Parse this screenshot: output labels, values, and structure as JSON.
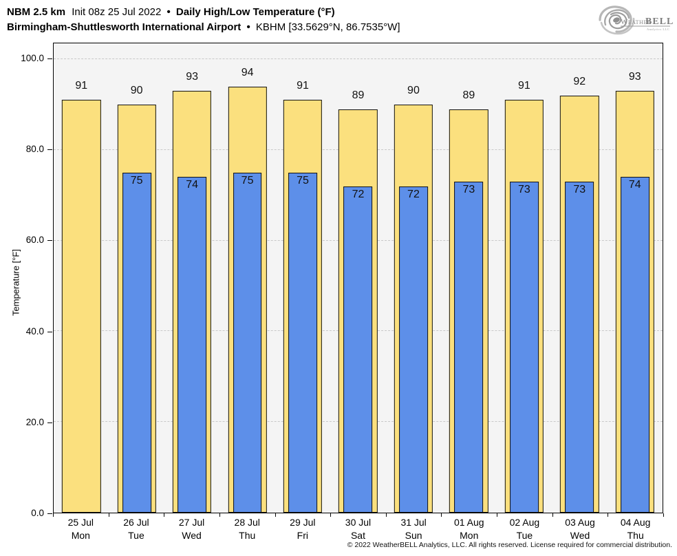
{
  "header": {
    "title_model": "NBM 2.5 km",
    "title_init": "Init 08z 25 Jul 2022",
    "bullet": "•",
    "title_product": "Daily High/Low Temperature (°F)",
    "subtitle_station": "Birmingham-Shuttlesworth International Airport",
    "subtitle_id": "KBHM [33.5629°N, 86.7535°W]"
  },
  "logo": {
    "brand_weather": "Weather",
    "brand_bell": "BELL",
    "tagline": "Analytics LLC"
  },
  "chart_data": {
    "type": "bar",
    "title": "NBM 2.5 km Init 08z 25 Jul 2022 • Daily High/Low Temperature (°F)",
    "subtitle": "Birmingham-Shuttlesworth International Airport • KBHM [33.5629°N, 86.7535°W]",
    "ylabel": "Temperature [°F]",
    "xlabel": "",
    "ylim": [
      0,
      103.5
    ],
    "yticks": [
      0,
      20,
      40,
      60,
      80,
      100
    ],
    "ytick_labels": [
      "0.0",
      "20.0",
      "40.0",
      "60.0",
      "80.0",
      "100.0"
    ],
    "grid": true,
    "legend": false,
    "categories": [
      {
        "date": "25 Jul",
        "day": "Mon"
      },
      {
        "date": "26 Jul",
        "day": "Tue"
      },
      {
        "date": "27 Jul",
        "day": "Wed"
      },
      {
        "date": "28 Jul",
        "day": "Thu"
      },
      {
        "date": "29 Jul",
        "day": "Fri"
      },
      {
        "date": "30 Jul",
        "day": "Sat"
      },
      {
        "date": "31 Jul",
        "day": "Sun"
      },
      {
        "date": "01 Aug",
        "day": "Mon"
      },
      {
        "date": "02 Aug",
        "day": "Tue"
      },
      {
        "date": "03 Aug",
        "day": "Wed"
      },
      {
        "date": "04 Aug",
        "day": "Thu"
      }
    ],
    "series": [
      {
        "name": "High",
        "color": "#FBE07E",
        "values": [
          91,
          90,
          93,
          94,
          91,
          89,
          90,
          89,
          91,
          92,
          93
        ]
      },
      {
        "name": "Low",
        "color": "#5D8FE9",
        "values": [
          null,
          75,
          74,
          75,
          75,
          72,
          72,
          73,
          73,
          73,
          74
        ]
      }
    ],
    "colors": {
      "plot_background": "#f4f4f4",
      "grid": "#c8c8c8",
      "bar_border": "#111111",
      "high": "#FBE07E",
      "low": "#5D8FE9"
    }
  },
  "footer": {
    "copyright": "© 2022 WeatherBELL Analytics, LLC. All rights reserved. License required for commercial distribution."
  }
}
